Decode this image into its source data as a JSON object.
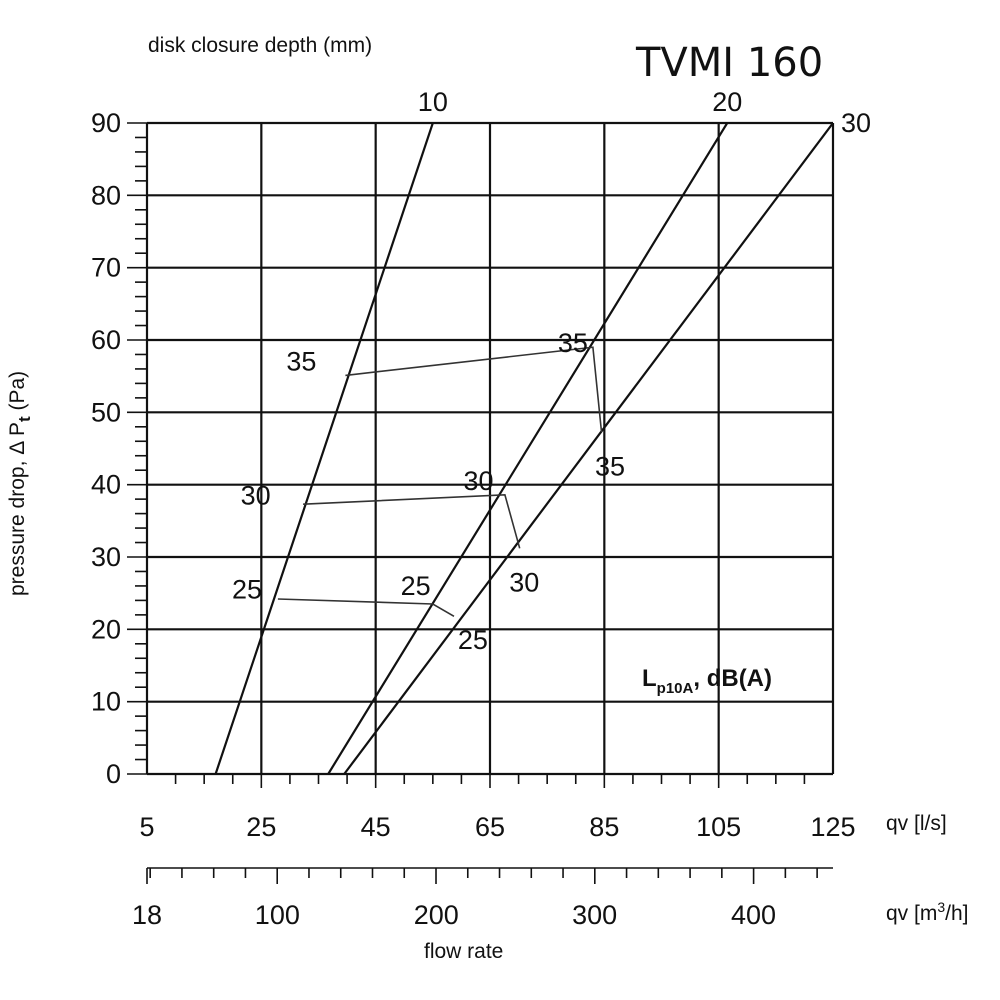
{
  "chart_data": {
    "type": "line",
    "title": "TVMI 160",
    "top_axis_title": "disk closure depth (mm)",
    "ylabel": "pressure drop,  Δ Pt (Pa)",
    "ylabel_main": "pressure drop,  Δ P",
    "ylabel_sub": "t",
    "ylabel_unit": " (Pa)",
    "xlabel": "flow rate",
    "x_unit": "qv [l/s]",
    "x2_unit_prefix": "qv [m",
    "x2_unit_sup": "3",
    "x2_unit_suffix": "/h]",
    "noise_label_main": "L",
    "noise_label_sub": "p10A",
    "noise_label_rest": ", dB(A)",
    "ylim": [
      0,
      90
    ],
    "xlim": [
      5,
      125
    ],
    "y_ticks": [
      "0",
      "10",
      "20",
      "30",
      "40",
      "50",
      "60",
      "70",
      "80",
      "90"
    ],
    "x_ticks": [
      "5",
      "25",
      "45",
      "65",
      "85",
      "105",
      "125"
    ],
    "x2_ticks": [
      {
        "label": "18",
        "lps": 5
      },
      {
        "label": "100",
        "lps": 27.8
      },
      {
        "label": "200",
        "lps": 55.6
      },
      {
        "label": "300",
        "lps": 83.3
      },
      {
        "label": "400",
        "lps": 111.1
      }
    ],
    "series": [
      {
        "name": "10",
        "points": [
          [
            17,
            0
          ],
          [
            55,
            90
          ]
        ]
      },
      {
        "name": "20",
        "points": [
          [
            36.7,
            0
          ],
          [
            106.5,
            90
          ]
        ]
      },
      {
        "name": "30",
        "points": [
          [
            39.5,
            0
          ],
          [
            125,
            90
          ]
        ]
      }
    ],
    "noise_lines": [
      {
        "points": [
          [
            27.9,
            24.2
          ],
          [
            55,
            23.5
          ],
          [
            58.7,
            21.8
          ]
        ],
        "labels": [
          {
            "text": "25",
            "at": [
              22.5,
              25.5
            ]
          },
          {
            "text": "25",
            "at": [
              52,
              26
            ]
          },
          {
            "text": "25",
            "at": [
              62,
              18.5
            ]
          }
        ]
      },
      {
        "points": [
          [
            32.3,
            37.3
          ],
          [
            67.6,
            38.6
          ],
          [
            70.2,
            31.2
          ]
        ],
        "labels": [
          {
            "text": "30",
            "at": [
              24,
              38.5
            ]
          },
          {
            "text": "30",
            "at": [
              63,
              40.5
            ]
          },
          {
            "text": "30",
            "at": [
              71,
              26.5
            ]
          }
        ]
      },
      {
        "points": [
          [
            39.7,
            55.1
          ],
          [
            83,
            59
          ],
          [
            84.5,
            47.3
          ]
        ],
        "labels": [
          {
            "text": "35",
            "at": [
              32,
              57
            ]
          },
          {
            "text": "35",
            "at": [
              79.5,
              59.6
            ]
          },
          {
            "text": "35",
            "at": [
              86,
              42.5
            ]
          }
        ]
      }
    ]
  }
}
